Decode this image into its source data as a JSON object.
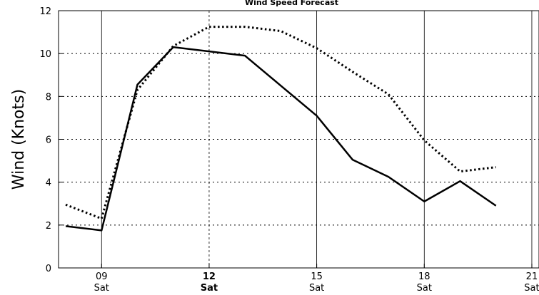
{
  "chart_data": {
    "type": "line",
    "title": "Wind Speed Forecast",
    "ylabel": "Wind (Knots)",
    "xlabel": "",
    "ylim": [
      0,
      12
    ],
    "xlim": [
      7.8,
      21.2
    ],
    "grid": true,
    "y_ticks": [
      0,
      2,
      4,
      6,
      8,
      10,
      12
    ],
    "x_ticks": [
      {
        "value": 9,
        "label": "09",
        "day": "Sat",
        "bold": false,
        "grid": "solid"
      },
      {
        "value": 12,
        "label": "12",
        "day": "Sat",
        "bold": true,
        "grid": "dashed"
      },
      {
        "value": 15,
        "label": "15",
        "day": "Sat",
        "bold": false,
        "grid": "solid"
      },
      {
        "value": 18,
        "label": "18",
        "day": "Sat",
        "bold": false,
        "grid": "solid"
      },
      {
        "value": 21,
        "label": "21",
        "day": "Sat",
        "bold": false,
        "grid": "solid"
      }
    ],
    "series": [
      {
        "style": "solid",
        "x": [
          8,
          9,
          10,
          11,
          12,
          13,
          14,
          15,
          16,
          17,
          18,
          19,
          20
        ],
        "values": [
          1.95,
          1.75,
          8.55,
          10.3,
          10.1,
          9.9,
          8.5,
          7.1,
          5.05,
          4.25,
          3.1,
          4.05,
          2.9
        ]
      },
      {
        "style": "dotted",
        "x": [
          8,
          9,
          10,
          11,
          12,
          13,
          14,
          15,
          16,
          17,
          18,
          19,
          20
        ],
        "values": [
          2.95,
          2.3,
          8.3,
          10.35,
          11.25,
          11.25,
          11.05,
          10.25,
          9.15,
          8.1,
          5.95,
          4.5,
          4.7
        ]
      }
    ]
  }
}
